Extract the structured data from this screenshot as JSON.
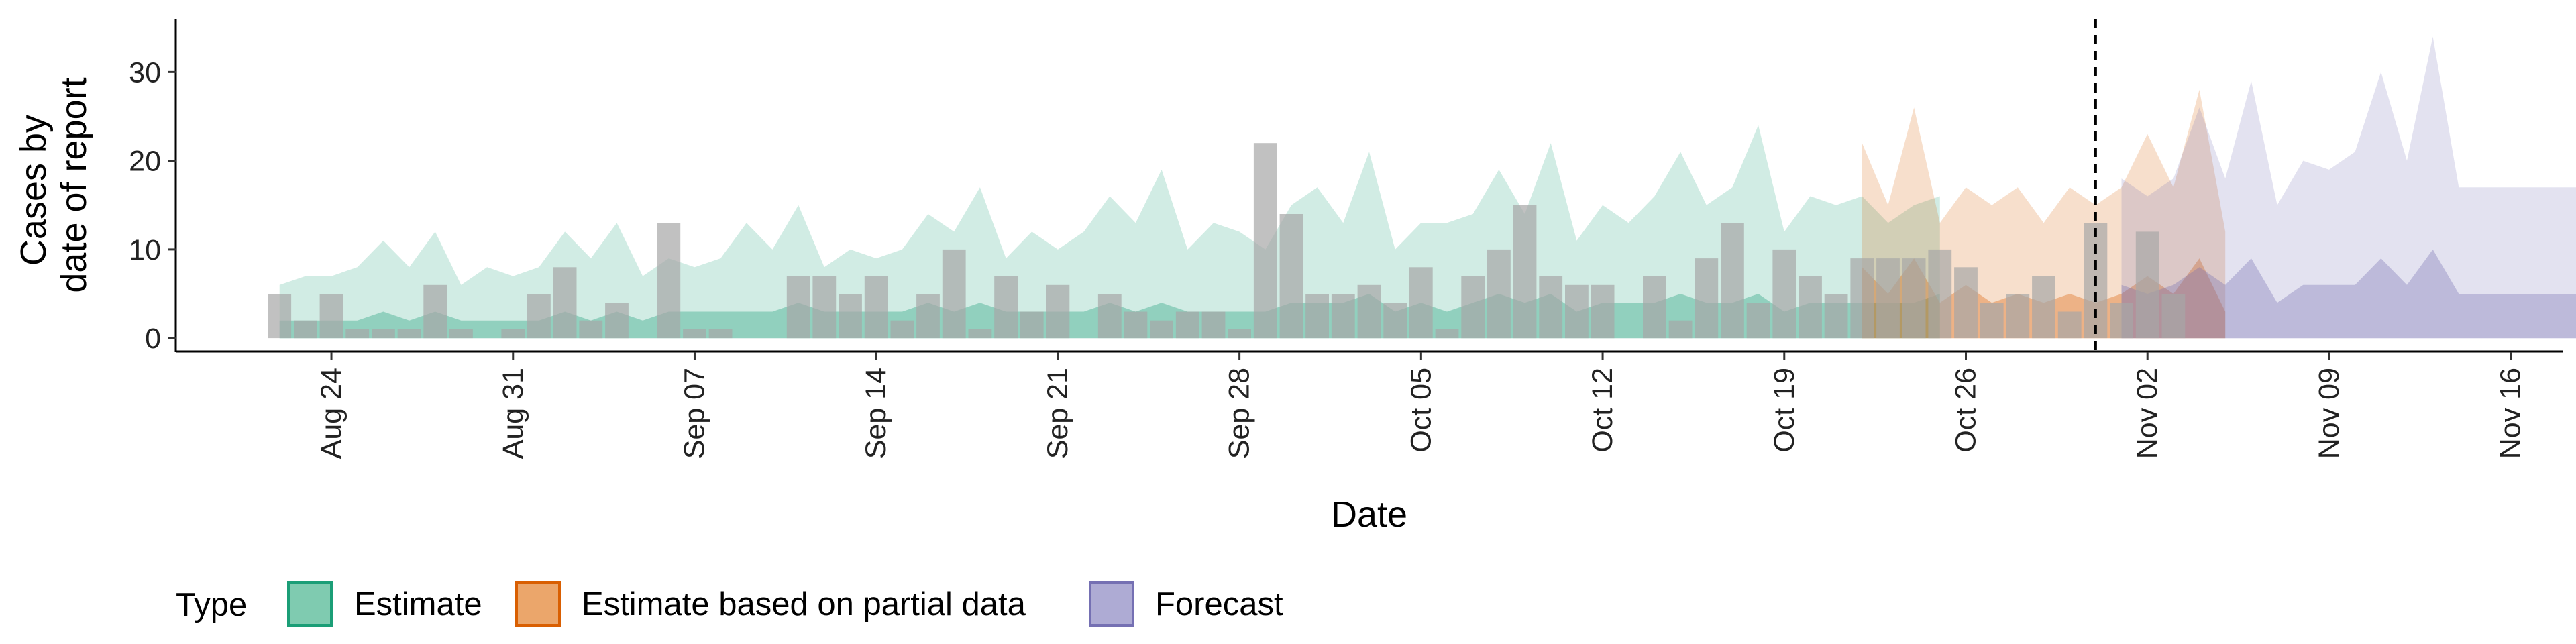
{
  "chart_data": {
    "type": "area",
    "xlabel": "Date",
    "ylabel_lines": [
      "Cases by",
      "date of report"
    ],
    "x_range": [
      "2020-08-18",
      "2020-11-18"
    ],
    "ylim": [
      -1.5,
      36
    ],
    "y_ticks": [
      0,
      10,
      20,
      30
    ],
    "x_ticks": [
      {
        "date": "2020-08-24",
        "label": "Aug 24"
      },
      {
        "date": "2020-08-31",
        "label": "Aug 31"
      },
      {
        "date": "2020-09-07",
        "label": "Sep 07"
      },
      {
        "date": "2020-09-14",
        "label": "Sep 14"
      },
      {
        "date": "2020-09-21",
        "label": "Sep 21"
      },
      {
        "date": "2020-09-28",
        "label": "Sep 28"
      },
      {
        "date": "2020-10-05",
        "label": "Oct 05"
      },
      {
        "date": "2020-10-12",
        "label": "Oct 12"
      },
      {
        "date": "2020-10-19",
        "label": "Oct 19"
      },
      {
        "date": "2020-10-26",
        "label": "Oct 26"
      },
      {
        "date": "2020-11-02",
        "label": "Nov 02"
      },
      {
        "date": "2020-11-09",
        "label": "Nov 09"
      },
      {
        "date": "2020-11-16",
        "label": "Nov 16"
      }
    ],
    "vline_date": "2020-10-31",
    "legend": {
      "title": "Type",
      "position": "bottom",
      "entries": [
        {
          "label": "Estimate",
          "fill": "#7fcbb0",
          "stroke": "#1b9e77"
        },
        {
          "label": "Estimate based on partial data",
          "fill": "#eba66b",
          "stroke": "#d95f02"
        },
        {
          "label": "Forecast",
          "fill": "#aeabd4",
          "stroke": "#7570b3"
        }
      ]
    },
    "observed_cases": {
      "start_date": "2020-08-22",
      "color": "#a6a6a6",
      "values": [
        5,
        2,
        5,
        1,
        1,
        1,
        6,
        1,
        0,
        1,
        5,
        8,
        2,
        4,
        0,
        13,
        1,
        1,
        0,
        0,
        7,
        7,
        5,
        7,
        2,
        5,
        10,
        1,
        7,
        3,
        6,
        0,
        5,
        3,
        2,
        3,
        3,
        1,
        22,
        14,
        5,
        5,
        6,
        4,
        8,
        1,
        7,
        10,
        15,
        7,
        6,
        6,
        0,
        7,
        2,
        9,
        13,
        4,
        10,
        7,
        5,
        9,
        9,
        9,
        10,
        8,
        4,
        5,
        7,
        3,
        13,
        4,
        12,
        5
      ]
    },
    "series": [
      {
        "name": "Estimate",
        "start_date": "2020-08-22",
        "fill": "#1b9e77",
        "outer_lower": [
          0,
          0,
          0,
          0,
          0,
          0,
          0,
          0,
          0,
          0,
          0,
          0,
          0,
          0,
          0,
          0,
          0,
          0,
          0,
          0,
          0,
          0,
          0,
          0,
          0,
          0,
          0,
          0,
          0,
          0,
          0,
          0,
          0,
          0,
          0,
          0,
          0,
          0,
          0,
          0,
          0,
          0,
          0,
          0,
          0,
          0,
          0,
          0,
          0,
          0,
          0,
          0,
          0,
          0,
          0,
          0,
          0,
          0,
          0,
          0,
          0,
          0,
          0,
          0,
          0
        ],
        "outer_upper": [
          6,
          7,
          7,
          8,
          11,
          8,
          12,
          6,
          8,
          7,
          8,
          12,
          9,
          13,
          7,
          9,
          8,
          9,
          13,
          10,
          15,
          8,
          10,
          9,
          10,
          14,
          12,
          17,
          9,
          12,
          10,
          12,
          16,
          13,
          19,
          10,
          13,
          12,
          10,
          15,
          17,
          13,
          21,
          10,
          13,
          13,
          14,
          19,
          14,
          22,
          11,
          15,
          13,
          16,
          21,
          15,
          17,
          24,
          12,
          16,
          15,
          16,
          13,
          15,
          16
        ],
        "inner_lower": [
          0,
          0,
          0,
          0,
          0,
          0,
          0,
          0,
          0,
          0,
          0,
          0,
          0,
          0,
          0,
          0,
          0,
          0,
          0,
          0,
          0,
          0,
          0,
          0,
          0,
          0,
          0,
          0,
          0,
          0,
          0,
          0,
          0,
          0,
          0,
          0,
          0,
          0,
          0,
          0,
          0,
          0,
          0,
          0,
          0,
          0,
          0,
          0,
          0,
          0,
          0,
          0,
          0,
          0,
          0,
          0,
          0,
          0,
          0,
          0,
          0,
          0,
          0,
          0,
          0
        ],
        "inner_upper": [
          2,
          2,
          2,
          2,
          3,
          2,
          3,
          2,
          2,
          2,
          2,
          3,
          2,
          3,
          2,
          3,
          3,
          3,
          3,
          3,
          4,
          3,
          3,
          3,
          3,
          4,
          3,
          4,
          3,
          3,
          3,
          3,
          4,
          3,
          4,
          3,
          3,
          3,
          3,
          4,
          4,
          4,
          5,
          3,
          4,
          3,
          4,
          5,
          4,
          5,
          3,
          4,
          4,
          4,
          5,
          4,
          4,
          5,
          3,
          4,
          4,
          4,
          4,
          4,
          5
        ]
      },
      {
        "name": "Estimate based on partial data",
        "start_date": "2020-10-22",
        "fill": "#d95f02",
        "outer_lower": [
          0,
          0,
          0,
          0,
          0,
          0,
          0,
          0,
          0,
          0,
          0,
          0,
          0,
          0,
          0
        ],
        "outer_upper": [
          22,
          15,
          26,
          13,
          17,
          15,
          17,
          13,
          17,
          15,
          17,
          23,
          17,
          28,
          12
        ],
        "inner_lower": [
          0,
          0,
          0,
          0,
          0,
          0,
          0,
          0,
          0,
          0,
          0,
          0,
          0,
          0,
          0
        ],
        "inner_upper": [
          8,
          5,
          9,
          4,
          6,
          4,
          5,
          4,
          5,
          4,
          5,
          7,
          5,
          9,
          3
        ]
      },
      {
        "name": "Forecast",
        "start_date": "2020-11-01",
        "fill": "#7570b3",
        "outer_lower": [
          0,
          0,
          0,
          0,
          0,
          0,
          0,
          0,
          0,
          0,
          0,
          0,
          0,
          0,
          0,
          0,
          0,
          0,
          0,
          0,
          0,
          0,
          0,
          0,
          0,
          0,
          0,
          0
        ],
        "outer_upper": [
          18,
          16,
          18,
          26,
          18,
          29,
          15,
          20,
          19,
          21,
          30,
          20,
          34,
          17,
          17,
          17,
          17,
          17,
          17,
          17,
          17,
          17,
          17,
          17,
          17,
          17,
          17,
          17
        ],
        "inner_lower": [
          0,
          0,
          0,
          0,
          0,
          0,
          0,
          0,
          0,
          0,
          0,
          0,
          0,
          0,
          0,
          0,
          0,
          0,
          0,
          0,
          0,
          0,
          0,
          0,
          0,
          0,
          0,
          0
        ],
        "inner_upper": [
          6,
          5,
          6,
          8,
          6,
          9,
          4,
          6,
          6,
          6,
          9,
          6,
          10,
          5,
          5,
          5,
          5,
          5,
          5,
          5,
          5,
          5,
          5,
          5,
          5,
          5,
          5,
          5
        ]
      }
    ]
  }
}
